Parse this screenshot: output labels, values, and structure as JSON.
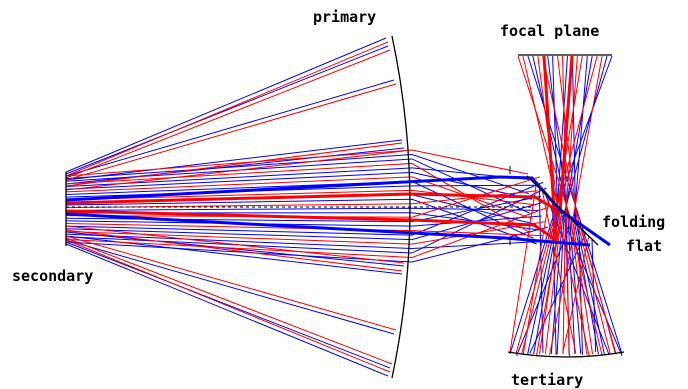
{
  "labels": {
    "primary": "primary",
    "focal_plane": "focal plane",
    "folding": "folding",
    "flat": "flat",
    "secondary": "secondary",
    "tertiary": "tertiary"
  },
  "colors": {
    "background": "#ffffff",
    "ray_blue": "#0000ff",
    "ray_red": "#ff0000",
    "optics": "#000000",
    "text": "#000000"
  }
}
